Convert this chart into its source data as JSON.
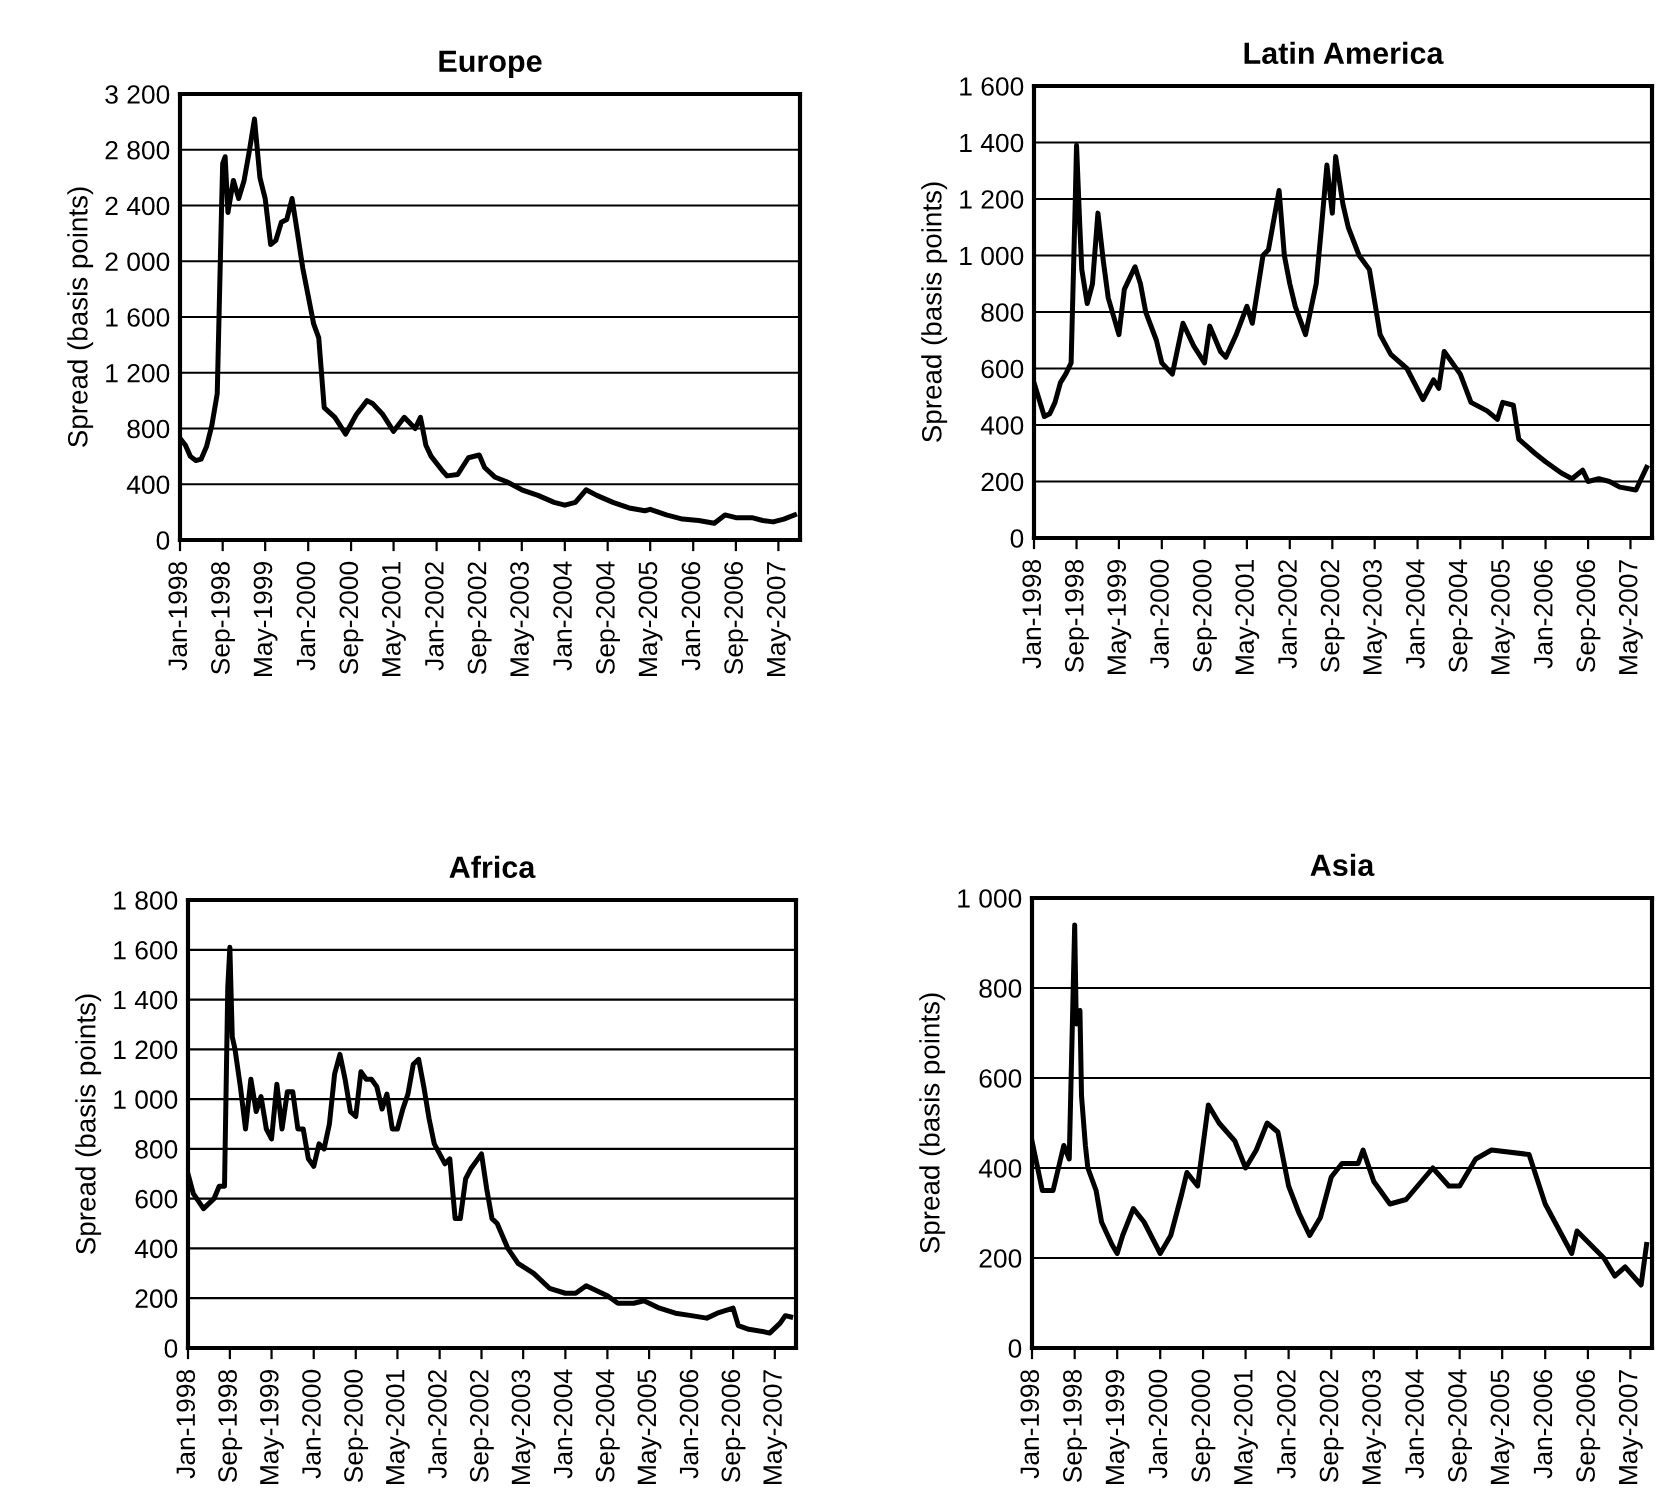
{
  "chart_data": [
    {
      "type": "line",
      "title": "Europe",
      "ylabel": "Spread (basis points)",
      "color": "#000000",
      "grid": "y",
      "line_style": "solid",
      "x": [
        "1998-01",
        "1998-02",
        "1998-03",
        "1998-04",
        "1998-05",
        "1998-06",
        "1998-07",
        "1998-08",
        "1998-08-25",
        "1998-09",
        "1998-09-15",
        "1998-10",
        "1998-11",
        "1998-12",
        "1999-01",
        "1999-02",
        "1999-03",
        "1999-04",
        "1999-05",
        "1999-06",
        "1999-07",
        "1999-08",
        "1999-09",
        "1999-10",
        "1999-11",
        "1999-12",
        "2000-01",
        "2000-02",
        "2000-03",
        "2000-04",
        "2000-06",
        "2000-08",
        "2000-10",
        "2000-12",
        "2001-01",
        "2001-03",
        "2001-05",
        "2001-07",
        "2001-09",
        "2001-10",
        "2001-11",
        "2001-12",
        "2002-02",
        "2002-03",
        "2002-05",
        "2002-07",
        "2002-09",
        "2002-10",
        "2002-12",
        "2003-02",
        "2003-05",
        "2003-08",
        "2003-11",
        "2004-01",
        "2004-03",
        "2004-05",
        "2004-07",
        "2004-10",
        "2005-01",
        "2005-04",
        "2005-05",
        "2005-08",
        "2005-11",
        "2006-02",
        "2006-05",
        "2006-07",
        "2006-09",
        "2006-12",
        "2007-02",
        "2007-04",
        "2007-06",
        "2007-08"
      ],
      "values": [
        730,
        680,
        600,
        570,
        580,
        670,
        820,
        1050,
        2350,
        2700,
        2750,
        2350,
        2580,
        2450,
        2580,
        2800,
        3020,
        2600,
        2450,
        2120,
        2150,
        2280,
        2300,
        2450,
        2200,
        1950,
        1750,
        1550,
        1450,
        950,
        880,
        760,
        900,
        1000,
        980,
        900,
        780,
        880,
        800,
        880,
        680,
        600,
        500,
        460,
        470,
        590,
        610,
        520,
        450,
        420,
        360,
        320,
        270,
        250,
        270,
        360,
        320,
        270,
        230,
        210,
        220,
        180,
        150,
        140,
        120,
        180,
        160,
        160,
        140,
        130,
        150,
        180
      ],
      "xlim": [
        "1998-01",
        "2007-09-01"
      ],
      "xticks": [
        {
          "value": "1998-01",
          "label": "Jan-1998"
        },
        {
          "value": "1998-09",
          "label": "Sep-1998"
        },
        {
          "value": "1999-05",
          "label": "May-1999"
        },
        {
          "value": "2000-01",
          "label": "Jan-2000"
        },
        {
          "value": "2000-09",
          "label": "Sep-2000"
        },
        {
          "value": "2001-05",
          "label": "May-2001"
        },
        {
          "value": "2002-01",
          "label": "Jan-2002"
        },
        {
          "value": "2002-09",
          "label": "Sep-2002"
        },
        {
          "value": "2003-05",
          "label": "May-2003"
        },
        {
          "value": "2004-01",
          "label": "Jan-2004"
        },
        {
          "value": "2004-09",
          "label": "Sep-2004"
        },
        {
          "value": "2005-05",
          "label": "May-2005"
        },
        {
          "value": "2006-01",
          "label": "Jan-2006"
        },
        {
          "value": "2006-09",
          "label": "Sep-2006"
        },
        {
          "value": "2007-05",
          "label": "May-2007"
        }
      ],
      "ylim": [
        0,
        3200
      ],
      "yticks": [
        0,
        400,
        800,
        {
          "value": 1200,
          "label": "1 200"
        },
        {
          "value": 1600,
          "label": "1 600"
        },
        {
          "value": 2000,
          "label": "2 000"
        },
        {
          "value": 2400,
          "label": "2 400"
        },
        {
          "value": 2800,
          "label": "2 800"
        },
        {
          "value": 3200,
          "label": "3 200"
        }
      ]
    },
    {
      "type": "line",
      "title": "Latin America",
      "ylabel": "Spread (basis points)",
      "color": "#000000",
      "grid": "y",
      "line_style": "solid",
      "x": [
        "1998-01",
        "1998-03",
        "1998-04",
        "1998-05",
        "1998-06",
        "1998-07",
        "1998-08",
        "1998-08-25",
        "1998-09",
        "1998-09-20",
        "1998-10",
        "1998-11",
        "1998-12",
        "1999-01",
        "1999-02",
        "1999-03",
        "1999-05",
        "1999-06",
        "1999-08",
        "1999-09",
        "1999-10",
        "1999-12",
        "2000-01",
        "2000-03",
        "2000-05",
        "2000-07",
        "2000-09",
        "2000-10",
        "2000-12",
        "2001-01",
        "2001-03",
        "2001-05",
        "2001-06",
        "2001-08",
        "2001-09",
        "2001-11",
        "2001-12",
        "2002-01",
        "2002-02",
        "2002-04",
        "2002-06",
        "2002-07",
        "2002-08",
        "2002-09",
        "2002-09-20",
        "2002-11",
        "2002-12",
        "2003-02",
        "2003-04",
        "2003-06",
        "2003-08",
        "2003-11",
        "2004-02",
        "2004-04",
        "2004-05",
        "2004-06",
        "2004-09",
        "2004-11",
        "2005-02",
        "2005-04",
        "2005-05",
        "2005-07",
        "2005-08",
        "2005-11",
        "2006-01",
        "2006-04",
        "2006-06",
        "2006-08",
        "2006-09",
        "2006-11",
        "2007-01",
        "2007-03",
        "2007-06",
        "2007-08"
      ],
      "values": [
        550,
        430,
        440,
        480,
        550,
        580,
        620,
        1200,
        1390,
        1100,
        950,
        830,
        900,
        1150,
        980,
        850,
        720,
        880,
        960,
        900,
        800,
        700,
        620,
        580,
        760,
        680,
        620,
        750,
        660,
        640,
        720,
        820,
        760,
        1000,
        1020,
        1230,
        1000,
        900,
        820,
        720,
        900,
        1100,
        1320,
        1150,
        1350,
        1180,
        1100,
        1000,
        950,
        720,
        650,
        600,
        490,
        560,
        530,
        660,
        580,
        480,
        450,
        420,
        480,
        470,
        350,
        300,
        270,
        230,
        210,
        240,
        200,
        210,
        200,
        180,
        170,
        250
      ],
      "xlim": [
        "1998-01",
        "2007-09-01"
      ],
      "xticks": [
        {
          "value": "1998-01",
          "label": "Jan-1998"
        },
        {
          "value": "1998-09",
          "label": "Sep-1998"
        },
        {
          "value": "1999-05",
          "label": "May-1999"
        },
        {
          "value": "2000-01",
          "label": "Jan-2000"
        },
        {
          "value": "2000-09",
          "label": "Sep-2000"
        },
        {
          "value": "2001-05",
          "label": "May-2001"
        },
        {
          "value": "2002-01",
          "label": "Jan-2002"
        },
        {
          "value": "2002-09",
          "label": "Sep-2002"
        },
        {
          "value": "2003-05",
          "label": "May-2003"
        },
        {
          "value": "2004-01",
          "label": "Jan-2004"
        },
        {
          "value": "2004-09",
          "label": "Sep-2004"
        },
        {
          "value": "2005-05",
          "label": "May-2005"
        },
        {
          "value": "2006-01",
          "label": "Jan-2006"
        },
        {
          "value": "2006-09",
          "label": "Sep-2006"
        },
        {
          "value": "2007-05",
          "label": "May-2007"
        }
      ],
      "ylim": [
        0,
        1600
      ],
      "yticks": [
        0,
        200,
        400,
        600,
        800,
        {
          "value": 1000,
          "label": "1 000"
        },
        {
          "value": 1200,
          "label": "1 200"
        },
        {
          "value": 1400,
          "label": "1 400"
        },
        {
          "value": 1600,
          "label": "1 600"
        }
      ]
    },
    {
      "type": "line",
      "title": "Africa",
      "ylabel": "Spread (basis points)",
      "color": "#000000",
      "grid": "y",
      "line_style": "solid",
      "x": [
        "1998-01",
        "1998-02",
        "1998-04",
        "1998-06",
        "1998-07",
        "1998-08",
        "1998-08-20",
        "1998-09",
        "1998-09-15",
        "1998-10",
        "1998-11",
        "1998-12",
        "1999-01",
        "1999-02",
        "1999-03",
        "1999-04",
        "1999-05",
        "1999-06",
        "1999-07",
        "1999-08",
        "1999-09",
        "1999-10",
        "1999-11",
        "1999-12",
        "2000-01",
        "2000-02",
        "2000-03",
        "2000-04",
        "2000-05",
        "2000-06",
        "2000-07",
        "2000-08",
        "2000-09",
        "2000-10",
        "2000-11",
        "2000-12",
        "2001-01",
        "2001-02",
        "2001-03",
        "2001-04",
        "2001-05",
        "2001-06",
        "2001-07",
        "2001-08",
        "2001-09",
        "2001-10",
        "2001-11",
        "2001-12",
        "2002-01",
        "2002-02",
        "2002-03",
        "2002-04",
        "2002-05",
        "2002-06",
        "2002-07",
        "2002-08",
        "2002-09",
        "2002-10",
        "2002-11",
        "2002-12",
        "2003-02",
        "2003-04",
        "2003-07",
        "2003-10",
        "2004-01",
        "2004-03",
        "2004-05",
        "2004-07",
        "2004-09",
        "2004-11",
        "2005-02",
        "2005-04",
        "2005-07",
        "2005-10",
        "2006-01",
        "2006-04",
        "2006-06",
        "2006-09",
        "2006-10",
        "2006-12",
        "2007-03",
        "2007-04",
        "2007-06",
        "2007-07",
        "2007-08"
      ],
      "values": [
        700,
        620,
        560,
        600,
        650,
        650,
        1450,
        1610,
        1250,
        1200,
        1050,
        880,
        1080,
        950,
        1010,
        880,
        840,
        1060,
        880,
        1030,
        1030,
        880,
        880,
        760,
        730,
        820,
        800,
        900,
        1100,
        1180,
        1080,
        950,
        930,
        1110,
        1080,
        1080,
        1050,
        960,
        1020,
        880,
        880,
        960,
        1020,
        1140,
        1160,
        1050,
        920,
        820,
        780,
        740,
        760,
        520,
        520,
        680,
        720,
        750,
        780,
        640,
        520,
        500,
        400,
        340,
        300,
        240,
        220,
        220,
        250,
        230,
        210,
        180,
        180,
        190,
        160,
        140,
        130,
        120,
        140,
        160,
        90,
        75,
        65,
        60,
        100,
        130,
        125
      ],
      "xlim": [
        "1998-01",
        "2007-09-01"
      ],
      "xticks": [
        {
          "value": "1998-01",
          "label": "Jan-1998"
        },
        {
          "value": "1998-09",
          "label": "Sep-1998"
        },
        {
          "value": "1999-05",
          "label": "May-1999"
        },
        {
          "value": "2000-01",
          "label": "Jan-2000"
        },
        {
          "value": "2000-09",
          "label": "Sep-2000"
        },
        {
          "value": "2001-05",
          "label": "May-2001"
        },
        {
          "value": "2002-01",
          "label": "Jan-2002"
        },
        {
          "value": "2002-09",
          "label": "Sep-2002"
        },
        {
          "value": "2003-05",
          "label": "May-2003"
        },
        {
          "value": "2004-01",
          "label": "Jan-2004"
        },
        {
          "value": "2004-09",
          "label": "Sep-2004"
        },
        {
          "value": "2005-05",
          "label": "May-2005"
        },
        {
          "value": "2006-01",
          "label": "Jan-2006"
        },
        {
          "value": "2006-09",
          "label": "Sep-2006"
        },
        {
          "value": "2007-05",
          "label": "May-2007"
        }
      ],
      "ylim": [
        0,
        1800
      ],
      "yticks": [
        0,
        200,
        400,
        600,
        800,
        {
          "value": 1000,
          "label": "1 000"
        },
        {
          "value": 1200,
          "label": "1 200"
        },
        {
          "value": 1400,
          "label": "1 400"
        },
        {
          "value": 1600,
          "label": "1 600"
        },
        {
          "value": 1800,
          "label": "1 800"
        }
      ]
    },
    {
      "type": "line",
      "title": "Asia",
      "ylabel": "Spread (basis points)",
      "color": "#000000",
      "grid": "y",
      "line_style": "solid",
      "x": [
        "1998-01",
        "1998-03",
        "1998-05",
        "1998-07",
        "1998-08",
        "1998-09",
        "1998-09-10",
        "1998-10",
        "1998-10-10",
        "1998-11",
        "1998-11-15",
        "1999-01",
        "1999-02",
        "1999-04",
        "1999-05",
        "1999-06",
        "1999-08",
        "1999-10",
        "2000-01",
        "2000-03",
        "2000-05",
        "2000-06",
        "2000-08",
        "2000-10",
        "2000-12",
        "2001-03",
        "2001-05",
        "2001-07",
        "2001-09",
        "2001-11",
        "2002-01",
        "2002-03",
        "2002-05",
        "2002-07",
        "2002-09",
        "2002-11",
        "2003-02",
        "2003-03",
        "2003-05",
        "2003-08",
        "2003-11",
        "2004-04",
        "2004-07",
        "2004-09",
        "2004-12",
        "2005-03",
        "2005-10",
        "2006-01",
        "2006-06",
        "2006-07",
        "2006-12",
        "2007-02",
        "2007-04",
        "2007-07",
        "2007-08"
      ],
      "values": [
        460,
        350,
        350,
        450,
        420,
        940,
        720,
        750,
        560,
        450,
        400,
        350,
        280,
        230,
        210,
        250,
        310,
        280,
        210,
        250,
        340,
        390,
        360,
        540,
        500,
        460,
        400,
        440,
        500,
        480,
        360,
        300,
        250,
        290,
        380,
        410,
        410,
        440,
        370,
        320,
        330,
        400,
        360,
        360,
        420,
        440,
        430,
        320,
        210,
        260,
        200,
        160,
        180,
        140,
        230
      ],
      "xlim": [
        "1998-01",
        "2007-09-01"
      ],
      "xticks": [
        {
          "value": "1998-01",
          "label": "Jan-1998"
        },
        {
          "value": "1998-09",
          "label": "Sep-1998"
        },
        {
          "value": "1999-05",
          "label": "May-1999"
        },
        {
          "value": "2000-01",
          "label": "Jan-2000"
        },
        {
          "value": "2000-09",
          "label": "Sep-2000"
        },
        {
          "value": "2001-05",
          "label": "May-2001"
        },
        {
          "value": "2002-01",
          "label": "Jan-2002"
        },
        {
          "value": "2002-09",
          "label": "Sep-2002"
        },
        {
          "value": "2003-05",
          "label": "May-2003"
        },
        {
          "value": "2004-01",
          "label": "Jan-2004"
        },
        {
          "value": "2004-09",
          "label": "Sep-2004"
        },
        {
          "value": "2005-05",
          "label": "May-2005"
        },
        {
          "value": "2006-01",
          "label": "Jan-2006"
        },
        {
          "value": "2006-09",
          "label": "Sep-2006"
        },
        {
          "value": "2007-05",
          "label": "May-2007"
        }
      ],
      "ylim": [
        0,
        1000
      ],
      "yticks": [
        0,
        200,
        400,
        600,
        800,
        {
          "value": 1000,
          "label": "1 000"
        }
      ]
    }
  ]
}
